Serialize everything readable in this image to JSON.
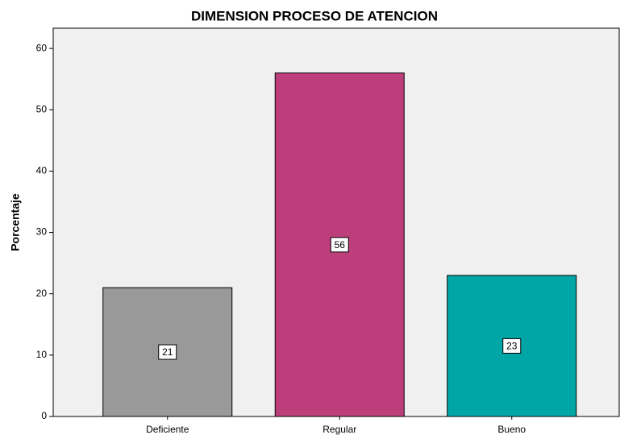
{
  "chart_data": {
    "type": "bar",
    "title": "DIMENSION PROCESO DE ATENCION",
    "y_label": "Porcentaje",
    "categories": [
      "Deficiente",
      "Regular",
      "Bueno"
    ],
    "values": [
      21,
      56,
      23
    ],
    "colors": [
      "#999999",
      "#bc3f7b",
      "#00a6a6"
    ],
    "ylim": [
      0,
      63.3
    ],
    "yticks": [
      0,
      10,
      20,
      30,
      40,
      50,
      60
    ],
    "grid": false
  }
}
